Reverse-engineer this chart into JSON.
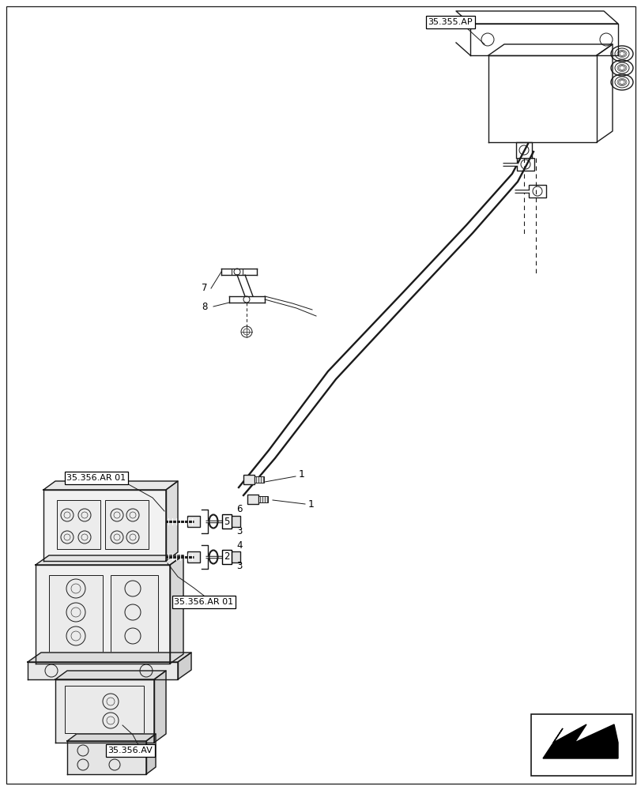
{
  "bg_color": "#ffffff",
  "line_color": "#1a1a1a",
  "lw": 1.0,
  "tlw": 0.7,
  "labels": {
    "ref_ap": "35.355.AP",
    "ref_ar01_top": "35.356.AR 01",
    "ref_ar01_bot": "35.356.AR 01",
    "ref_av": "35.356.AV",
    "n1a": "1",
    "n1b": "1",
    "n2": "2",
    "n3a": "3",
    "n3b": "3",
    "n4": "4",
    "n5": "5",
    "n6": "6",
    "n7": "7",
    "n8": "8"
  }
}
